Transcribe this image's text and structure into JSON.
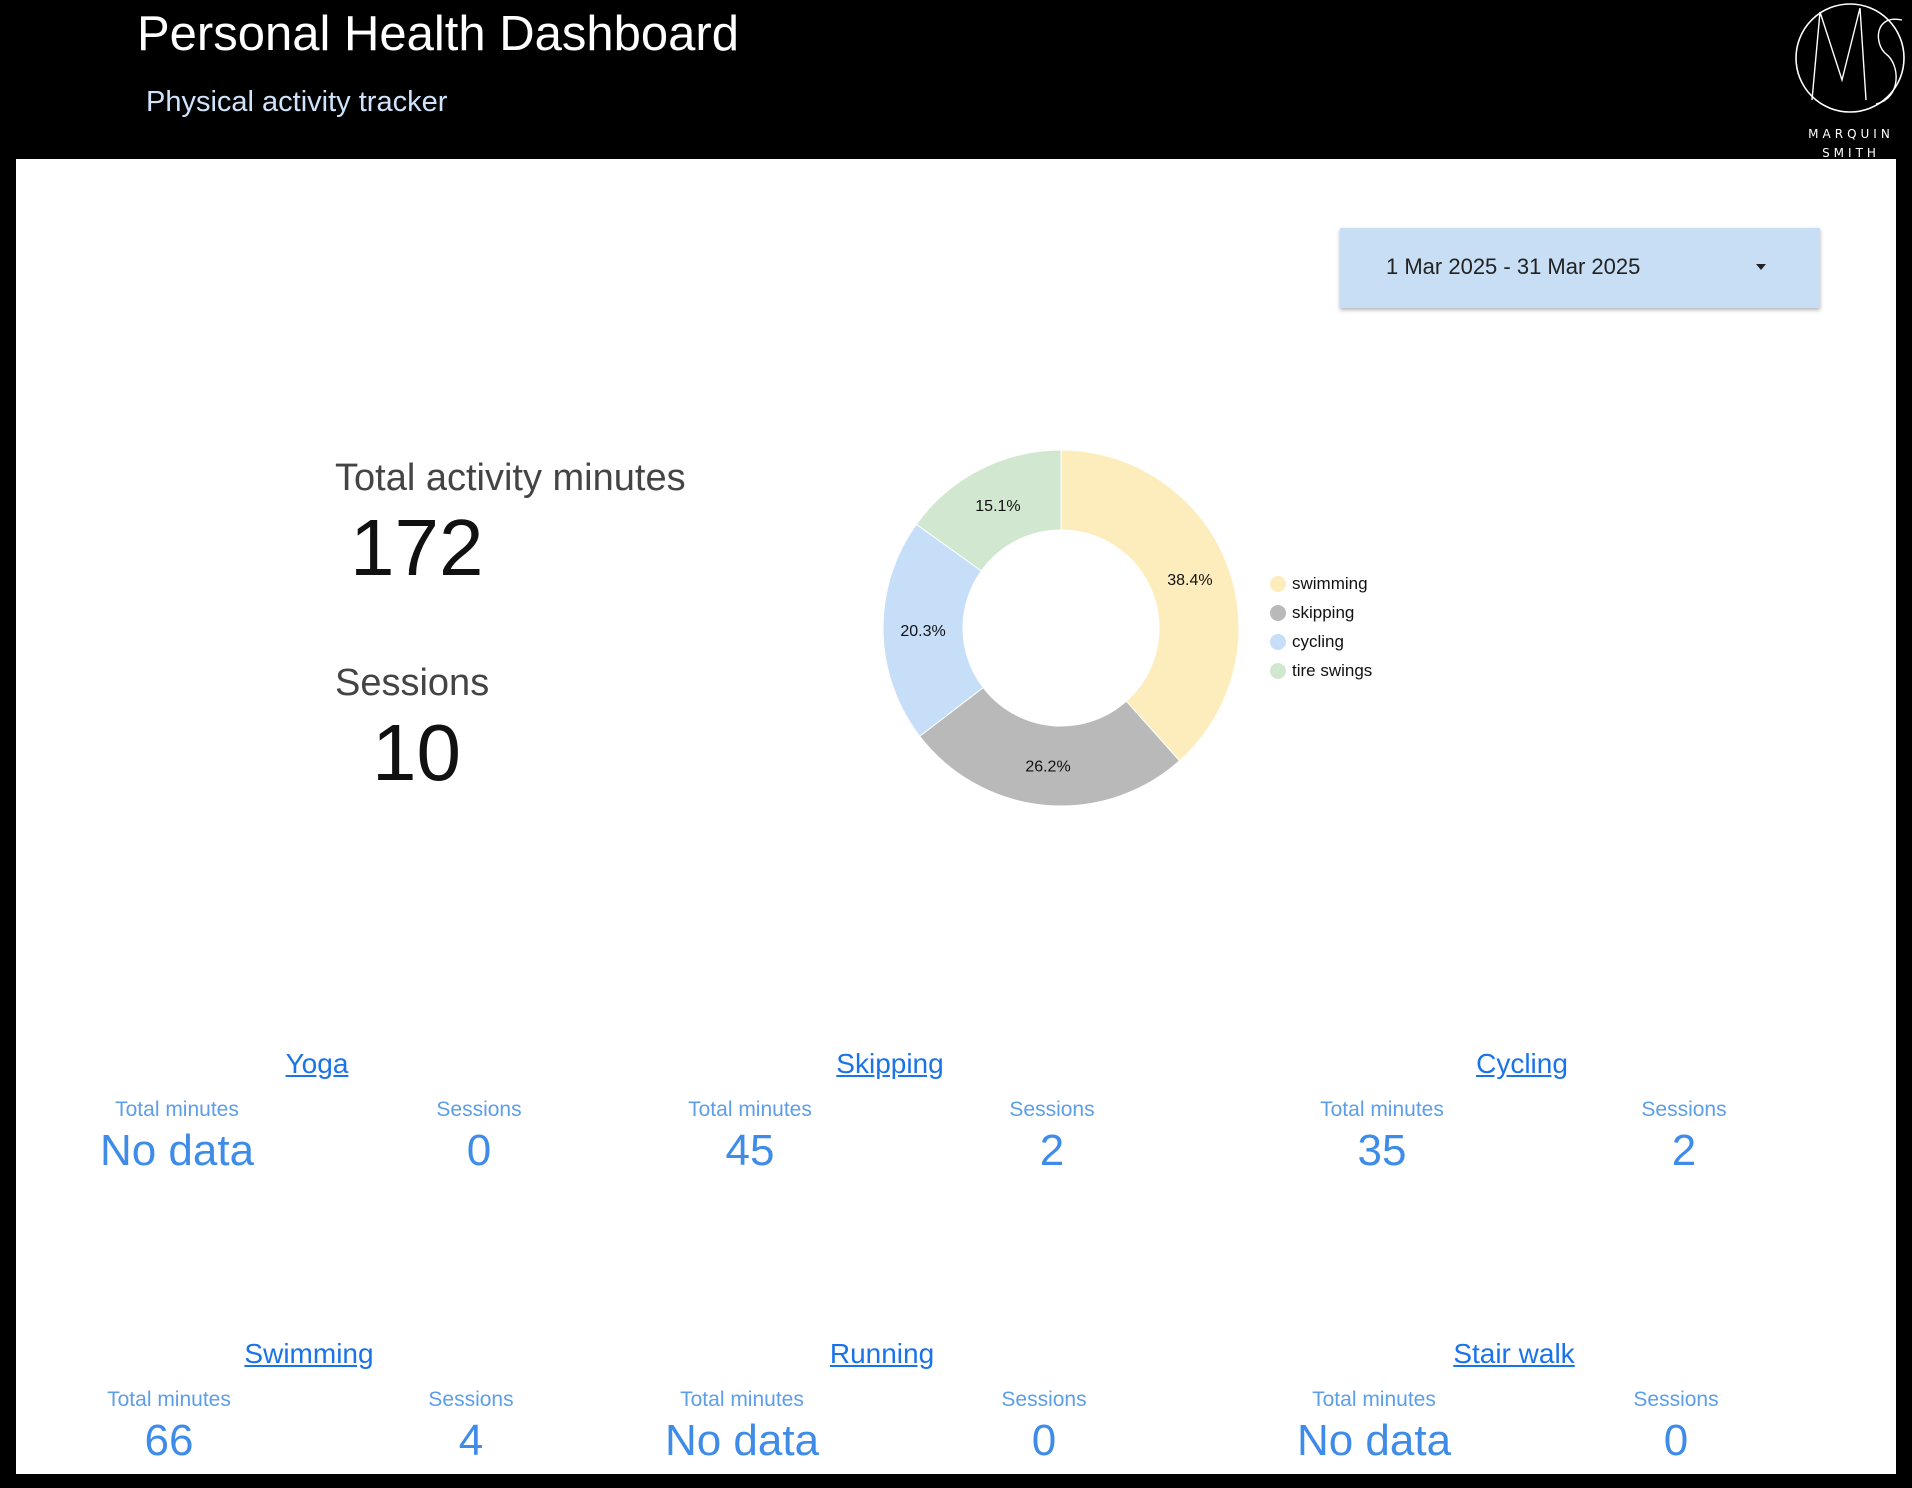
{
  "header": {
    "title": "Personal Health Dashboard",
    "subtitle": "Physical activity tracker",
    "logo_line1": "MARQUIN",
    "logo_line2": "SMITH"
  },
  "date_range": {
    "label": "1 Mar 2025 - 31 Mar 2025"
  },
  "kpis": {
    "total_minutes_label": "Total activity minutes",
    "total_minutes_value": "172",
    "sessions_label": "Sessions",
    "sessions_value": "10"
  },
  "chart_data": {
    "type": "pie",
    "categories": [
      "swimming",
      "skipping",
      "cycling",
      "tire swings"
    ],
    "values": [
      38.4,
      26.2,
      20.3,
      15.1
    ],
    "labels": [
      "38.4%",
      "26.2%",
      "20.3%",
      "15.1%"
    ],
    "colors": [
      "#fdedbd",
      "#b9b9b9",
      "#c6def8",
      "#d1e7cf"
    ],
    "legend_position": "right",
    "title": ""
  },
  "cards": [
    {
      "title": "Yoga",
      "minutes_label": "Total minutes",
      "minutes_value": "No data",
      "sessions_label": "Sessions",
      "sessions_value": "0"
    },
    {
      "title": "Skipping",
      "minutes_label": "Total minutes",
      "minutes_value": "45",
      "sessions_label": "Sessions",
      "sessions_value": "2"
    },
    {
      "title": "Cycling",
      "minutes_label": "Total minutes",
      "minutes_value": "35",
      "sessions_label": "Sessions",
      "sessions_value": "2"
    },
    {
      "title": "Swimming",
      "minutes_label": "Total minutes",
      "minutes_value": "66",
      "sessions_label": "Sessions",
      "sessions_value": "4"
    },
    {
      "title": "Running",
      "minutes_label": "Total minutes",
      "minutes_value": "No data",
      "sessions_label": "Sessions",
      "sessions_value": "0"
    },
    {
      "title": "Stair walk",
      "minutes_label": "Total minutes",
      "minutes_value": "No data",
      "sessions_label": "Sessions",
      "sessions_value": "0"
    }
  ]
}
